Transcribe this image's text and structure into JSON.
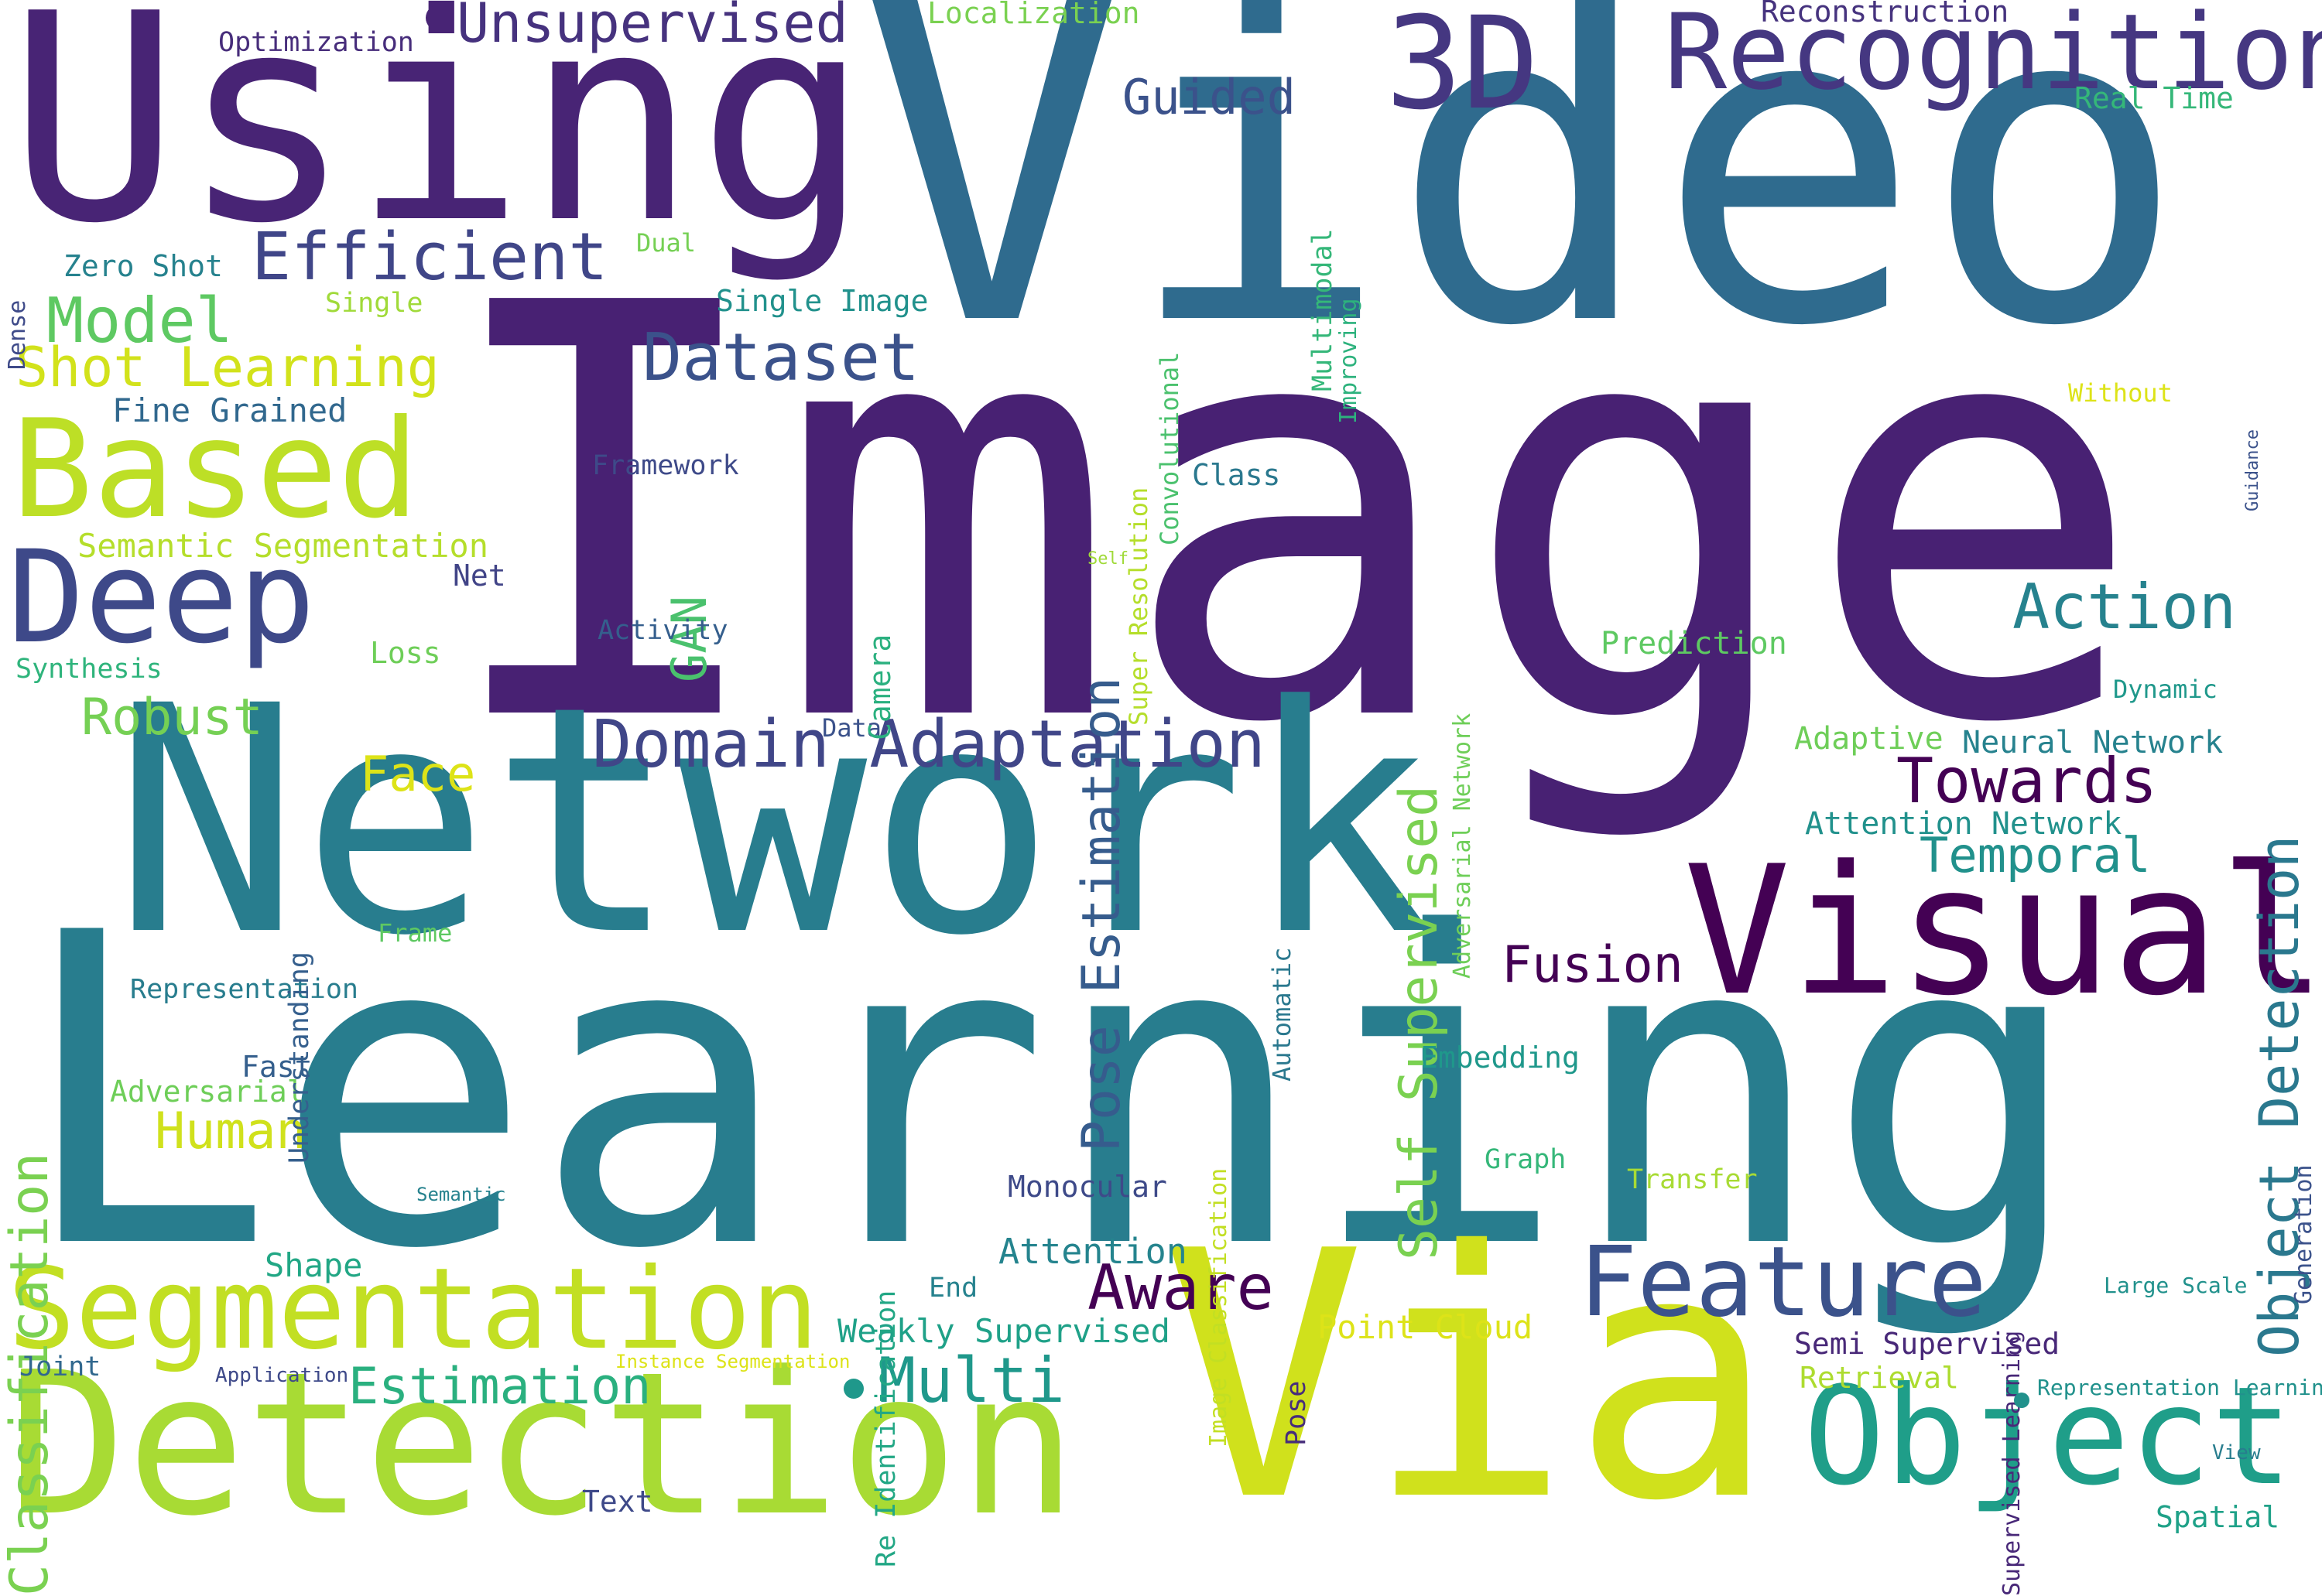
{
  "words": [
    {
      "text": "Image",
      "color": "#482173"
    },
    {
      "text": "Video",
      "color": "#2f6b8e"
    },
    {
      "text": "Learning",
      "color": "#287d8e"
    },
    {
      "text": "Network",
      "color": "#287d8e"
    },
    {
      "text": "Using",
      "color": "#482475"
    },
    {
      "text": "Via",
      "color": "#d0e11c"
    },
    {
      "text": "Detection",
      "color": "#a8db34"
    },
    {
      "text": "Recognition",
      "color": "#453781"
    },
    {
      "text": "3D",
      "color": "#453781"
    },
    {
      "text": "Visual",
      "color": "#440154"
    },
    {
      "text": "Object",
      "color": "#1f9e89"
    },
    {
      "text": "Segmentation",
      "color": "#c2df23"
    },
    {
      "text": "Based",
      "color": "#bddf26"
    },
    {
      "text": "Deep",
      "color": "#3e4989"
    },
    {
      "text": "Feature",
      "color": "#3b528b"
    },
    {
      "text": "Domain Adaptation",
      "color": "#404688"
    },
    {
      "text": "Unsupervised",
      "color": "#46327e"
    },
    {
      "text": "Efficient",
      "color": "#404688"
    },
    {
      "text": "Towards",
      "color": "#440154"
    },
    {
      "text": "Dataset",
      "color": "#3b528b"
    },
    {
      "text": "Object Detection",
      "color": "#2a788e"
    },
    {
      "text": "Self Supervised",
      "color": "#7ad151"
    },
    {
      "text": "Pose Estimation",
      "color": "#365c8d"
    },
    {
      "text": "Classification",
      "color": "#7ad151"
    },
    {
      "text": "Action",
      "color": "#26828e"
    },
    {
      "text": "Multi",
      "color": "#1f988b"
    },
    {
      "text": "Aware",
      "color": "#440154"
    },
    {
      "text": "Estimation",
      "color": "#2ab07f"
    },
    {
      "text": "Temporal",
      "color": "#21918c"
    },
    {
      "text": "Model",
      "color": "#5ec962"
    },
    {
      "text": "Shot Learning",
      "color": "#d2e21b"
    },
    {
      "text": "Human",
      "color": "#d0e11c"
    },
    {
      "text": "Robust",
      "color": "#75d054"
    },
    {
      "text": "Fusion",
      "color": "#440154"
    },
    {
      "text": "Guided",
      "color": "#3b528b"
    },
    {
      "text": "Face",
      "color": "#dde318"
    },
    {
      "text": "GAN",
      "color": "#4ac16d"
    },
    {
      "text": "Fine Grained",
      "color": "#31688e"
    },
    {
      "text": "Zero Shot",
      "color": "#26828e"
    },
    {
      "text": "Single Image",
      "color": "#21918c"
    },
    {
      "text": "Semantic Segmentation",
      "color": "#b5de2b"
    },
    {
      "text": "Weakly Supervised",
      "color": "#1fa188"
    },
    {
      "text": "Attention",
      "color": "#25848e"
    },
    {
      "text": "Re Identification",
      "color": "#22a785"
    },
    {
      "text": "Framework",
      "color": "#3e4a89"
    },
    {
      "text": "Activity",
      "color": "#355f8d"
    },
    {
      "text": "Optimization",
      "color": "#472d7b"
    },
    {
      "text": "Localization",
      "color": "#7ad151"
    },
    {
      "text": "Reconstruction",
      "color": "#46337e"
    },
    {
      "text": "Real Time",
      "color": "#35b779"
    },
    {
      "text": "Multimodal",
      "color": "#35b779"
    },
    {
      "text": "Improving",
      "color": "#2db27d"
    },
    {
      "text": "Convolutional",
      "color": "#4ac16d"
    },
    {
      "text": "Super Resolution",
      "color": "#b5de2b"
    },
    {
      "text": "Class",
      "color": "#2a788e"
    },
    {
      "text": "Adversarial Network",
      "color": "#6ece58"
    },
    {
      "text": "Self",
      "color": "#a0da39"
    },
    {
      "text": "Camera",
      "color": "#2ab07f"
    },
    {
      "text": "Net",
      "color": "#414487"
    },
    {
      "text": "Loss",
      "color": "#6ece58"
    },
    {
      "text": "Synthesis",
      "color": "#2fb47c"
    },
    {
      "text": "Data",
      "color": "#3b528b"
    },
    {
      "text": "Understanding",
      "color": "#355f8d"
    },
    {
      "text": "Frame",
      "color": "#5ec962"
    },
    {
      "text": "Representation",
      "color": "#287d8e"
    },
    {
      "text": "Automatic",
      "color": "#2a788e"
    },
    {
      "text": "Image Classification",
      "color": "#c2df23"
    },
    {
      "text": "Embedding",
      "color": "#1f988b"
    },
    {
      "text": "Graph",
      "color": "#35b779"
    },
    {
      "text": "Transfer",
      "color": "#a8db34"
    },
    {
      "text": "Monocular",
      "color": "#3e4a89"
    },
    {
      "text": "Fast",
      "color": "#355f8d"
    },
    {
      "text": "Adversarial",
      "color": "#6ece58"
    },
    {
      "text": "Semantic",
      "color": "#26828e"
    },
    {
      "text": "Shape",
      "color": "#22a785"
    },
    {
      "text": "End",
      "color": "#26828e"
    },
    {
      "text": "Pose",
      "color": "#472d7b"
    },
    {
      "text": "Point Cloud",
      "color": "#dde318"
    },
    {
      "text": "Joint",
      "color": "#31688e"
    },
    {
      "text": "Application",
      "color": "#3e4989"
    },
    {
      "text": "Instance Segmentation",
      "color": "#dde318"
    },
    {
      "text": "Text",
      "color": "#3e4989"
    },
    {
      "text": "Semi Supervised",
      "color": "#482878"
    },
    {
      "text": "Retrieval",
      "color": "#addc30"
    },
    {
      "text": "Representation Learning",
      "color": "#21918c"
    },
    {
      "text": "View",
      "color": "#287d8e"
    },
    {
      "text": "Spatial",
      "color": "#1fa188"
    },
    {
      "text": "Large Scale",
      "color": "#21918c"
    },
    {
      "text": "Generation",
      "color": "#3b528b"
    },
    {
      "text": "Supervised Learning",
      "color": "#482878"
    },
    {
      "text": "Adaptive",
      "color": "#6ece58"
    },
    {
      "text": "Neural Network",
      "color": "#26828e"
    },
    {
      "text": "Attention Network",
      "color": "#21918c"
    },
    {
      "text": "Dynamic",
      "color": "#1f988b"
    },
    {
      "text": "Prediction",
      "color": "#5ec962"
    },
    {
      "text": "Without",
      "color": "#dde318"
    },
    {
      "text": "Guidance",
      "color": "#3b528b"
    },
    {
      "text": "Dual",
      "color": "#75d054"
    },
    {
      "text": "Single",
      "color": "#a0da39"
    },
    {
      "text": "Dense",
      "color": "#3e4a89"
    }
  ]
}
